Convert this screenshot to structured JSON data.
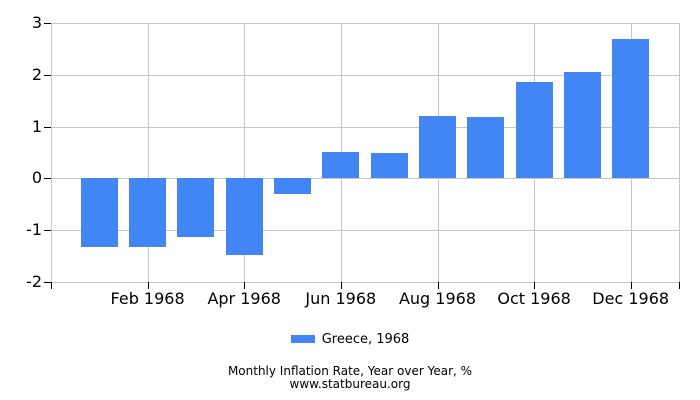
{
  "chart_data": {
    "type": "bar",
    "categories": [
      "Jan 1968",
      "Feb 1968",
      "Mar 1968",
      "Apr 1968",
      "May 1968",
      "Jun 1968",
      "Jul 1968",
      "Aug 1968",
      "Sep 1968",
      "Oct 1968",
      "Nov 1968",
      "Dec 1968"
    ],
    "values": [
      -1.33,
      -1.33,
      -1.14,
      -1.48,
      -0.31,
      0.51,
      0.5,
      1.2,
      1.18,
      1.86,
      2.05,
      2.7
    ],
    "series_name": "Greece, 1968",
    "title": "",
    "xlabel": "",
    "ylabel": "",
    "ylim": [
      -2,
      3
    ],
    "ytick_labels": [
      "3",
      "2",
      "1",
      "0",
      "-1",
      "-2"
    ],
    "ytick_values": [
      3,
      2,
      1,
      0,
      -1,
      -2
    ],
    "xtick_labels": [
      "Feb 1968",
      "Apr 1968",
      "Jun 1968",
      "Aug 1968",
      "Oct 1968",
      "Dec 1968"
    ],
    "xtick_month_positions": [
      2,
      4,
      6,
      8,
      10,
      12
    ],
    "grid": true,
    "legend_position": "bottom"
  },
  "legend": {
    "label": "Greece, 1968",
    "swatch_color": "#4285F4"
  },
  "footer": {
    "line1": "Monthly Inflation Rate, Year over Year, %",
    "line2": "www.statbureau.org"
  },
  "colors": {
    "bar": "#4285F4",
    "grid": "#c6c6c6",
    "tick": "#000000",
    "text": "#000000",
    "background": "#ffffff"
  }
}
